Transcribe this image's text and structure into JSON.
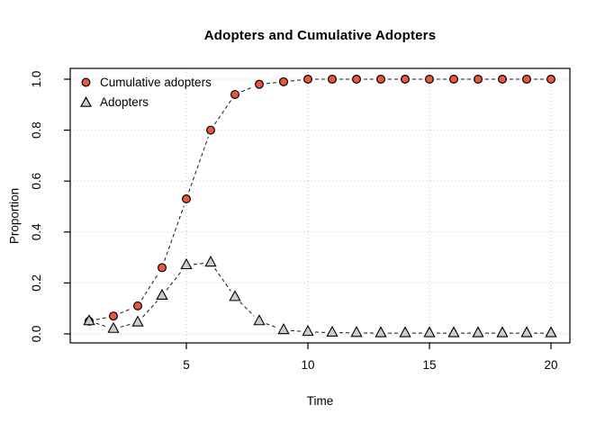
{
  "chart_data": {
    "type": "line",
    "title": "Adopters and Cumulative Adopters",
    "xlabel": "Time",
    "ylabel": "Proportion",
    "x": [
      1,
      2,
      3,
      4,
      5,
      6,
      7,
      8,
      9,
      10,
      11,
      12,
      13,
      14,
      15,
      16,
      17,
      18,
      19,
      20
    ],
    "series": [
      {
        "name": "Cumulative adopters",
        "marker": "circle",
        "marker_fill": "#e8583e",
        "values": [
          0.05,
          0.07,
          0.11,
          0.26,
          0.53,
          0.8,
          0.94,
          0.98,
          0.99,
          1.0,
          1.0,
          1.0,
          1.0,
          1.0,
          1.0,
          1.0,
          1.0,
          1.0,
          1.0,
          1.0
        ]
      },
      {
        "name": "Adopters",
        "marker": "triangle",
        "marker_fill": "#cccccc",
        "values": [
          0.05,
          0.02,
          0.045,
          0.15,
          0.27,
          0.28,
          0.145,
          0.05,
          0.015,
          0.008,
          0.005,
          0.004,
          0.003,
          0.003,
          0.003,
          0.003,
          0.003,
          0.003,
          0.003,
          0.003
        ]
      }
    ],
    "xticks": [
      5,
      10,
      15,
      20
    ],
    "yticks": [
      0.0,
      0.2,
      0.4,
      0.6,
      0.8,
      1.0
    ],
    "ytick_labels": [
      "0.0",
      "0.2",
      "0.4",
      "0.6",
      "0.8",
      "1.0"
    ],
    "xlim": [
      1,
      20
    ],
    "ylim": [
      0,
      1
    ],
    "grid": "dotted",
    "legend_position": "top-left",
    "line_style": "dashed",
    "line_color": "#1a1a1a",
    "grid_color": "#c6c6c6",
    "axis_color": "#000000",
    "marker_stroke": "#000000"
  }
}
